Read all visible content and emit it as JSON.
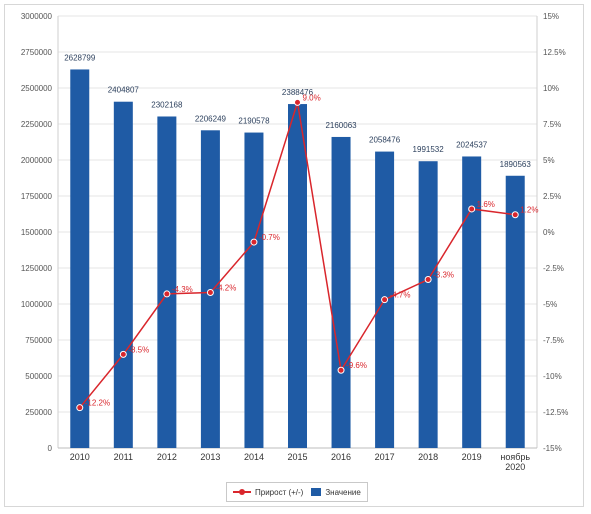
{
  "chart_data": {
    "type": "bar",
    "categories": [
      "2010",
      "2011",
      "2012",
      "2013",
      "2014",
      "2015",
      "2016",
      "2017",
      "2018",
      "2019",
      "ноябрь 2020"
    ],
    "series": [
      {
        "name": "Значение",
        "type": "bar",
        "axis": "left",
        "values": [
          2628799,
          2404807,
          2302168,
          2206249,
          2190578,
          2388476,
          2160063,
          2058476,
          1991532,
          2024537,
          1890563
        ],
        "labels": [
          "2628799",
          "2404807",
          "2302168",
          "2206249",
          "2190578",
          "2388476",
          "2160063",
          "2058476",
          "1991532",
          "2024537",
          "1890563"
        ],
        "color": "#1f5ba5"
      },
      {
        "name": "Прирост (+/-)",
        "type": "line",
        "axis": "right",
        "values": [
          -12.2,
          -8.5,
          -4.3,
          -4.2,
          -0.7,
          9.0,
          -9.6,
          -4.7,
          -3.3,
          1.6,
          1.2
        ],
        "labels": [
          "-12.2%",
          "-8.5%",
          "-4.3%",
          "-4.2%",
          "-0.7%",
          "9.0%",
          "-9.6%",
          "-4.7%",
          "-3.3%",
          "1.6%",
          "1.2%"
        ],
        "color": "#d9262c"
      }
    ],
    "y_left": {
      "ylim": [
        0,
        3000000
      ],
      "ticks": [
        "0",
        "250000",
        "500000",
        "750000",
        "1000000",
        "1250000",
        "1500000",
        "1750000",
        "2000000",
        "2250000",
        "2500000",
        "2750000",
        "3000000"
      ]
    },
    "y_right": {
      "ylim": [
        -15,
        15
      ],
      "ticks": [
        "-15%",
        "-12.5%",
        "-10%",
        "-7.5%",
        "-5%",
        "-2.5%",
        "0%",
        "2.5%",
        "5%",
        "7.5%",
        "10%",
        "12.5%",
        "15%"
      ]
    },
    "grid": true,
    "legend": {
      "placement": "bottom",
      "items": [
        "Прирост (+/-)",
        "Значение"
      ]
    },
    "colors": {
      "bar": "#1f5ba5",
      "line": "#d9262c",
      "grid": "#e6e6e6"
    }
  }
}
